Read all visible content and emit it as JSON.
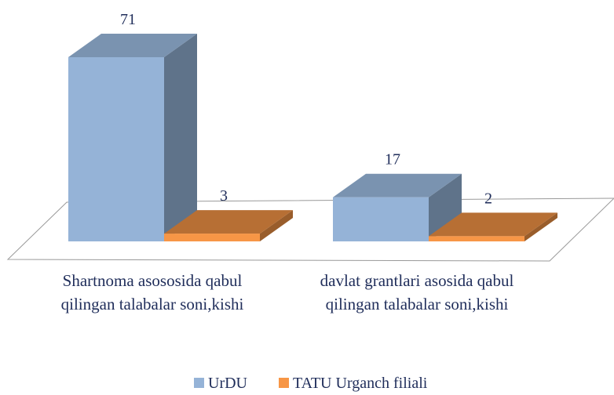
{
  "chart_data": {
    "type": "bar3d",
    "categories": [
      "Shartnoma asososida qabul qilingan talabalar soni,kishi",
      "davlat grantlari asosida qabul qilingan talabalar soni,kishi"
    ],
    "series": [
      {
        "name": "UrDU",
        "color": "#95b3d7",
        "values": [
          71,
          17
        ]
      },
      {
        "name": "TATU Urganch filiali",
        "color": "#f79646",
        "values": [
          3,
          2
        ]
      }
    ],
    "legend": "bottom"
  }
}
